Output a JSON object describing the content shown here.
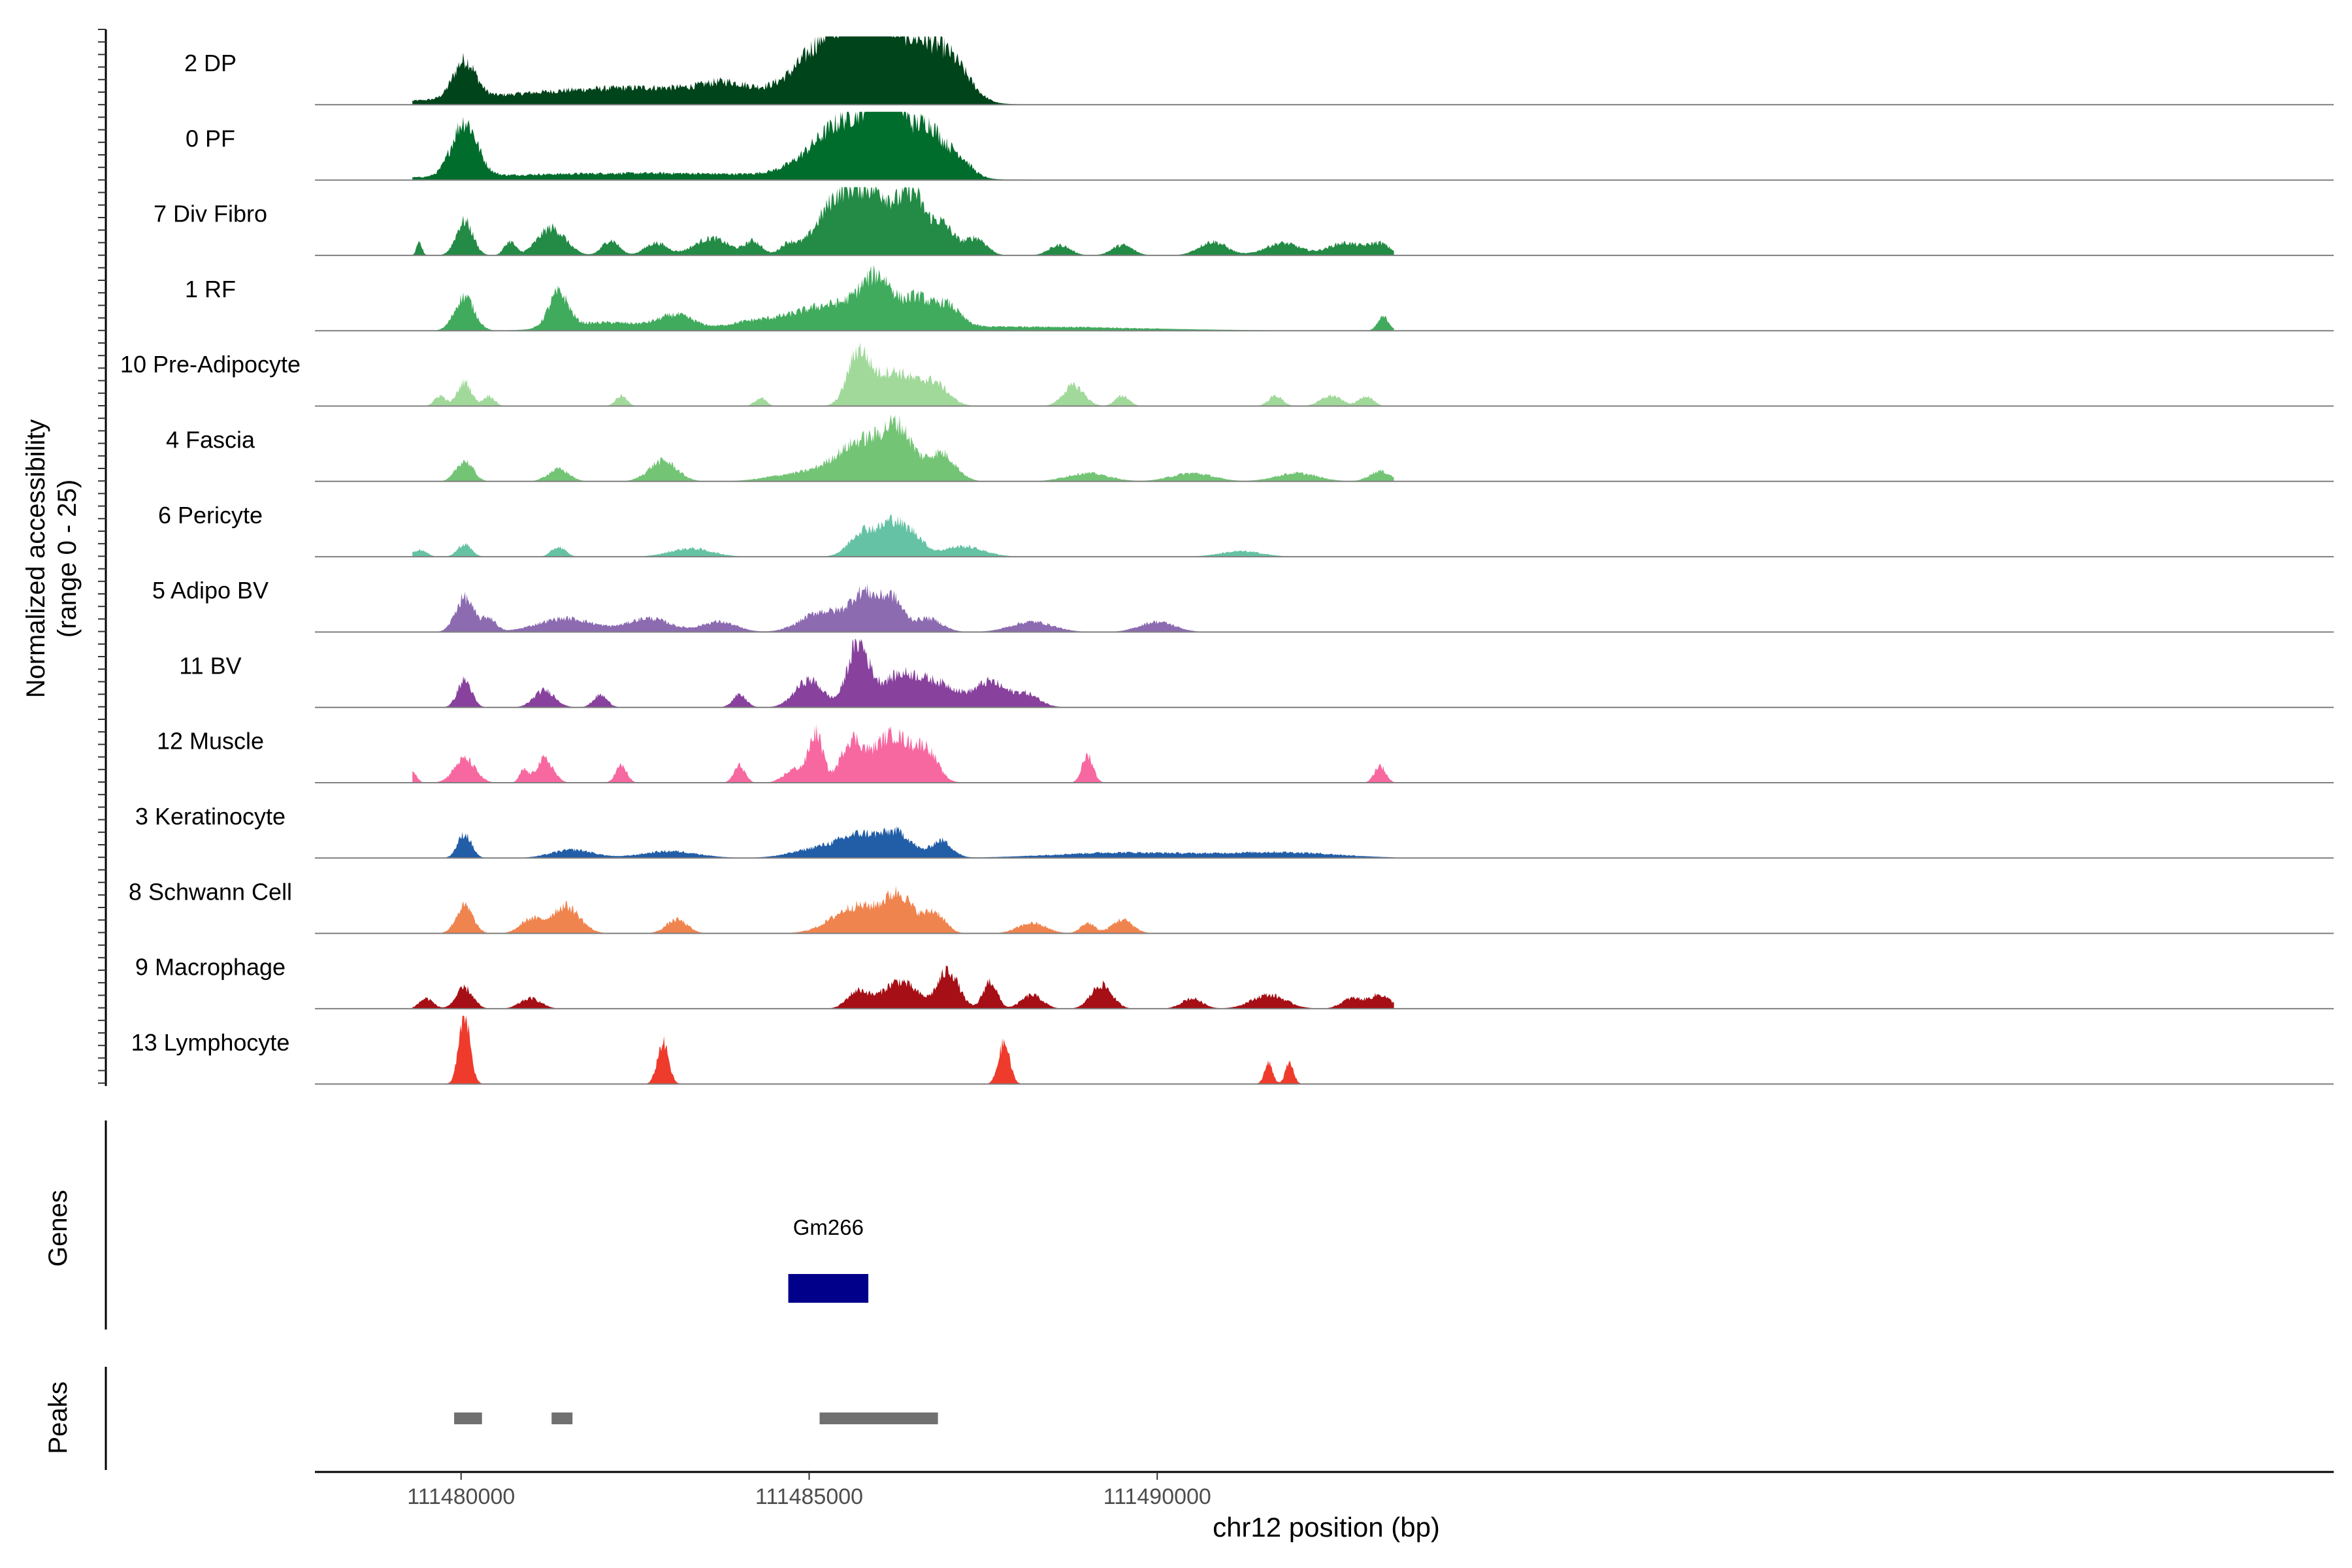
{
  "chart_data": {
    "type": "area",
    "y_axis_label_line1": "Normalized accessibility",
    "y_axis_label_line2": "(range 0 - 25)",
    "ylim": [
      0,
      25
    ],
    "xlabel": "chr12 position (bp)",
    "xlim": [
      111477900,
      111506900
    ],
    "xticks": [
      {
        "value": 111480000,
        "label": "111480000"
      },
      {
        "value": 111485000,
        "label": "111485000"
      },
      {
        "value": 111490000,
        "label": "111490000"
      }
    ],
    "track_panel_labels": {
      "genes": "Genes",
      "peaks": "Peaks"
    },
    "series": [
      {
        "name": "2 DP",
        "color": "#00441b",
        "peaks": [
          [
            111480050,
            55,
            160
          ],
          [
            111482700,
            25,
            2000
          ],
          [
            111485350,
            85,
            450
          ],
          [
            111486050,
            90,
            400
          ],
          [
            111486700,
            55,
            300
          ],
          [
            111487100,
            40,
            250
          ],
          [
            111483800,
            12,
            300
          ]
        ]
      },
      {
        "name": "0 PF",
        "color": "#006d2c",
        "peaks": [
          [
            111480050,
            80,
            180
          ],
          [
            111485600,
            85,
            500
          ],
          [
            111486150,
            100,
            220
          ],
          [
            111486700,
            65,
            180
          ],
          [
            111487100,
            35,
            200
          ],
          [
            111482600,
            10,
            2400
          ]
        ]
      },
      {
        "name": "7 Div Fibro",
        "color": "#238b45",
        "peaks": [
          [
            111479400,
            18,
            40
          ],
          [
            111480050,
            50,
            120
          ],
          [
            111480700,
            20,
            80
          ],
          [
            111481300,
            40,
            200
          ],
          [
            111482150,
            22,
            120
          ],
          [
            111482800,
            18,
            160
          ],
          [
            111483600,
            25,
            250
          ],
          [
            111484200,
            20,
            120
          ],
          [
            111484700,
            15,
            120
          ],
          [
            111485400,
            70,
            300
          ],
          [
            111486000,
            85,
            350
          ],
          [
            111486500,
            60,
            150
          ],
          [
            111486900,
            45,
            180
          ],
          [
            111487400,
            25,
            150
          ],
          [
            111488600,
            15,
            150
          ],
          [
            111489500,
            15,
            150
          ],
          [
            111490800,
            20,
            200
          ],
          [
            111491800,
            18,
            250
          ],
          [
            111492700,
            18,
            250
          ],
          [
            111493200,
            16,
            150
          ]
        ]
      },
      {
        "name": "1 RF",
        "color": "#41ab5d",
        "peaks": [
          [
            111480050,
            50,
            140
          ],
          [
            111481400,
            50,
            140
          ],
          [
            111482100,
            12,
            600
          ],
          [
            111483100,
            20,
            250
          ],
          [
            111484200,
            12,
            400
          ],
          [
            111485300,
            35,
            500
          ],
          [
            111486000,
            65,
            250
          ],
          [
            111486550,
            35,
            150
          ],
          [
            111486950,
            35,
            200
          ],
          [
            111493250,
            20,
            80
          ],
          [
            111487900,
            6,
            1800
          ]
        ]
      },
      {
        "name": "10 Pre-Adipocyte",
        "color": "#a1d99b",
        "peaks": [
          [
            111480050,
            35,
            100
          ],
          [
            111479700,
            15,
            80
          ],
          [
            111480400,
            15,
            80
          ],
          [
            111482300,
            15,
            80
          ],
          [
            111484300,
            12,
            80
          ],
          [
            111485700,
            70,
            150
          ],
          [
            111486200,
            50,
            300
          ],
          [
            111486800,
            30,
            200
          ],
          [
            111488800,
            30,
            150
          ],
          [
            111489500,
            15,
            100
          ],
          [
            111491700,
            15,
            100
          ],
          [
            111492500,
            15,
            150
          ],
          [
            111493000,
            15,
            100
          ]
        ]
      },
      {
        "name": "4 Fascia",
        "color": "#74c476",
        "peaks": [
          [
            111480050,
            30,
            120
          ],
          [
            111481400,
            18,
            150
          ],
          [
            111482900,
            30,
            200
          ],
          [
            111484800,
            10,
            400
          ],
          [
            111485800,
            60,
            400
          ],
          [
            111486300,
            55,
            200
          ],
          [
            111486900,
            40,
            200
          ],
          [
            111489000,
            12,
            300
          ],
          [
            111490500,
            12,
            300
          ],
          [
            111492000,
            12,
            300
          ],
          [
            111493200,
            15,
            150
          ]
        ]
      },
      {
        "name": "6 Pericyte",
        "color": "#66c2a4",
        "peaks": [
          [
            111479400,
            10,
            100
          ],
          [
            111480050,
            18,
            100
          ],
          [
            111481400,
            14,
            100
          ],
          [
            111483300,
            12,
            300
          ],
          [
            111485800,
            40,
            200
          ],
          [
            111486200,
            45,
            150
          ],
          [
            111486500,
            30,
            150
          ],
          [
            111487200,
            15,
            300
          ],
          [
            111491200,
            8,
            300
          ]
        ]
      },
      {
        "name": "5 Adipo BV",
        "color": "#8c6bb1",
        "peaks": [
          [
            111480050,
            50,
            130
          ],
          [
            111480400,
            20,
            100
          ],
          [
            111481500,
            20,
            400
          ],
          [
            111482700,
            20,
            300
          ],
          [
            111483700,
            15,
            250
          ],
          [
            111485200,
            30,
            300
          ],
          [
            111485800,
            55,
            200
          ],
          [
            111486200,
            45,
            150
          ],
          [
            111486700,
            20,
            200
          ],
          [
            111488200,
            15,
            300
          ],
          [
            111490000,
            15,
            250
          ]
        ]
      },
      {
        "name": "11 BV",
        "color": "#88419d",
        "peaks": [
          [
            111480050,
            40,
            100
          ],
          [
            111481200,
            25,
            150
          ],
          [
            111482000,
            18,
            100
          ],
          [
            111484000,
            18,
            100
          ],
          [
            111485000,
            40,
            200
          ],
          [
            111485700,
            90,
            150
          ],
          [
            111486300,
            45,
            300
          ],
          [
            111486900,
            30,
            300
          ],
          [
            111487600,
            35,
            200
          ],
          [
            111488100,
            20,
            200
          ]
        ]
      },
      {
        "name": "12 Muscle",
        "color": "#f768a1",
        "peaks": [
          [
            111479300,
            18,
            60
          ],
          [
            111480050,
            35,
            150
          ],
          [
            111480900,
            18,
            60
          ],
          [
            111481200,
            35,
            120
          ],
          [
            111482300,
            25,
            80
          ],
          [
            111484000,
            25,
            80
          ],
          [
            111484800,
            20,
            150
          ],
          [
            111485100,
            70,
            100
          ],
          [
            111485600,
            55,
            150
          ],
          [
            111486200,
            70,
            300
          ],
          [
            111486700,
            35,
            150
          ],
          [
            111489000,
            40,
            80
          ],
          [
            111493200,
            25,
            80
          ]
        ]
      },
      {
        "name": "3 Keratinocyte",
        "color": "#225ea8",
        "peaks": [
          [
            111480050,
            35,
            100
          ],
          [
            111481600,
            12,
            300
          ],
          [
            111483000,
            10,
            400
          ],
          [
            111485200,
            15,
            400
          ],
          [
            111485800,
            30,
            300
          ],
          [
            111486300,
            30,
            200
          ],
          [
            111486900,
            25,
            150
          ],
          [
            111489500,
            8,
            1000
          ],
          [
            111491800,
            8,
            800
          ]
        ]
      },
      {
        "name": "8 Schwann Cell",
        "color": "#f0844f",
        "peaks": [
          [
            111480050,
            40,
            120
          ],
          [
            111481000,
            20,
            150
          ],
          [
            111481500,
            40,
            200
          ],
          [
            111483100,
            20,
            150
          ],
          [
            111485700,
            40,
            350
          ],
          [
            111486300,
            50,
            200
          ],
          [
            111486800,
            30,
            150
          ],
          [
            111488200,
            15,
            200
          ],
          [
            111489000,
            15,
            100
          ],
          [
            111489500,
            20,
            150
          ]
        ]
      },
      {
        "name": "9 Macrophage",
        "color": "#a50f15",
        "peaks": [
          [
            111479500,
            15,
            100
          ],
          [
            111480050,
            30,
            120
          ],
          [
            111481000,
            15,
            150
          ],
          [
            111485700,
            25,
            150
          ],
          [
            111486300,
            40,
            250
          ],
          [
            111487000,
            55,
            150
          ],
          [
            111487600,
            40,
            100
          ],
          [
            111488200,
            20,
            150
          ],
          [
            111489200,
            35,
            150
          ],
          [
            111490500,
            15,
            150
          ],
          [
            111491600,
            20,
            250
          ],
          [
            111492800,
            15,
            150
          ],
          [
            111493200,
            20,
            150
          ]
        ]
      },
      {
        "name": "13 Lymphocyte",
        "color": "#ef3b2c",
        "peaks": [
          [
            111480050,
            100,
            80
          ],
          [
            111482900,
            60,
            80
          ],
          [
            111487800,
            60,
            80
          ],
          [
            111491600,
            30,
            60
          ],
          [
            111491900,
            30,
            60
          ]
        ]
      }
    ],
    "genes": [
      {
        "name": "Gm266",
        "start": 111484700,
        "end": 111485850,
        "color": "#00008b"
      }
    ],
    "peaks": [
      {
        "start": 111479900,
        "end": 111480300
      },
      {
        "start": 111481300,
        "end": 111481600
      },
      {
        "start": 111485150,
        "end": 111486850
      }
    ],
    "colors": {
      "baseline": "#7f7f7f",
      "axis": "#000000",
      "peak_bar": "#707070",
      "tick_text": "#4d4d4d"
    },
    "grid": false
  }
}
